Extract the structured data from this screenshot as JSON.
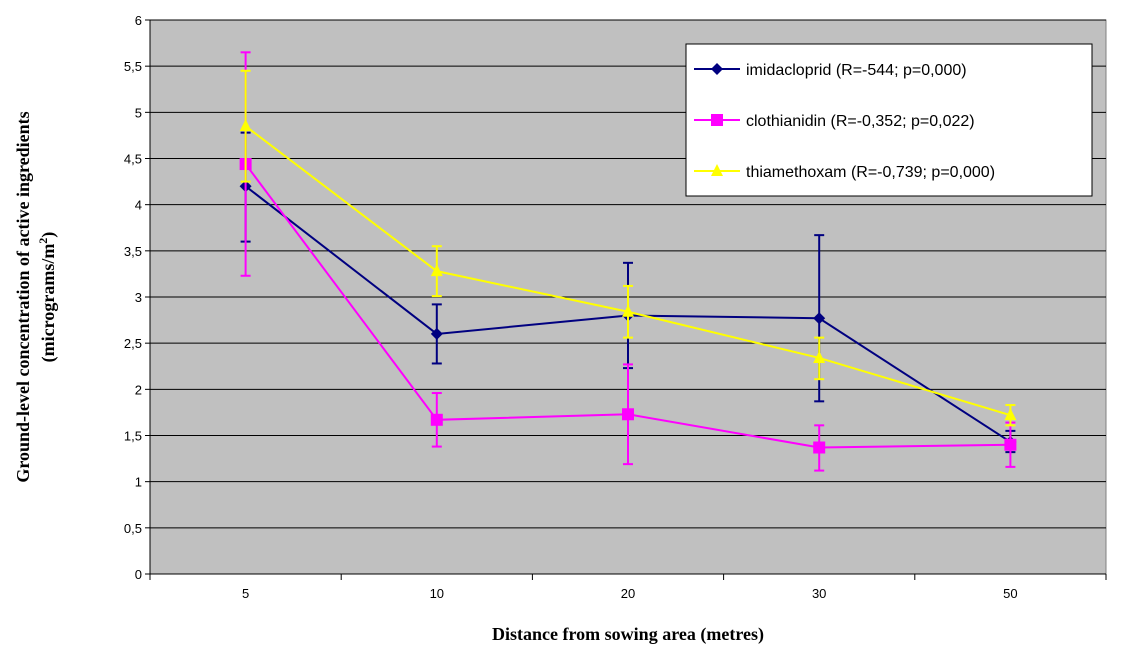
{
  "chart_data": {
    "type": "line",
    "xlabel": "Distance from sowing area (metres)",
    "ylabel_line1": "Ground-level concentration of active ingredients",
    "ylabel_line2_prefix": "(micrograms/m",
    "ylabel_superscript": "2",
    "ylabel_line2_suffix": ")",
    "categories": [
      "5",
      "10",
      "20",
      "30",
      "50"
    ],
    "yticks": [
      "0",
      "0,5",
      "1",
      "1,5",
      "2",
      "2,5",
      "3",
      "3,5",
      "4",
      "4,5",
      "5",
      "5,5",
      "6"
    ],
    "ylim": [
      0,
      6
    ],
    "grid": true,
    "legend_position": "top-right",
    "colors": {
      "plot_background": "#c0c0c0",
      "gridline": "#000000"
    },
    "series": [
      {
        "name": "imidacloprid (R=-544; p=0,000)",
        "color": "#000080",
        "marker": "diamond",
        "values": [
          4.2,
          2.6,
          2.8,
          2.77,
          1.43
        ],
        "error_upper": [
          4.78,
          2.92,
          3.37,
          3.67,
          1.55
        ],
        "error_lower": [
          3.6,
          2.28,
          2.23,
          1.87,
          1.32
        ]
      },
      {
        "name": "clothianidin (R=-0,352; p=0,022)",
        "color": "#ff00ff",
        "marker": "square",
        "values": [
          4.44,
          1.67,
          1.73,
          1.37,
          1.4
        ],
        "error_upper": [
          5.65,
          1.96,
          2.27,
          1.61,
          1.64
        ],
        "error_lower": [
          3.23,
          1.38,
          1.19,
          1.12,
          1.16
        ]
      },
      {
        "name": "thiamethoxam (R=-0,739; p=0,000)",
        "color": "#ffff00",
        "marker": "triangle",
        "values": [
          4.85,
          3.28,
          2.84,
          2.34,
          1.72
        ],
        "error_upper": [
          5.45,
          3.55,
          3.12,
          2.56,
          1.83
        ],
        "error_lower": [
          4.25,
          3.01,
          2.56,
          2.11,
          1.61
        ]
      }
    ]
  }
}
